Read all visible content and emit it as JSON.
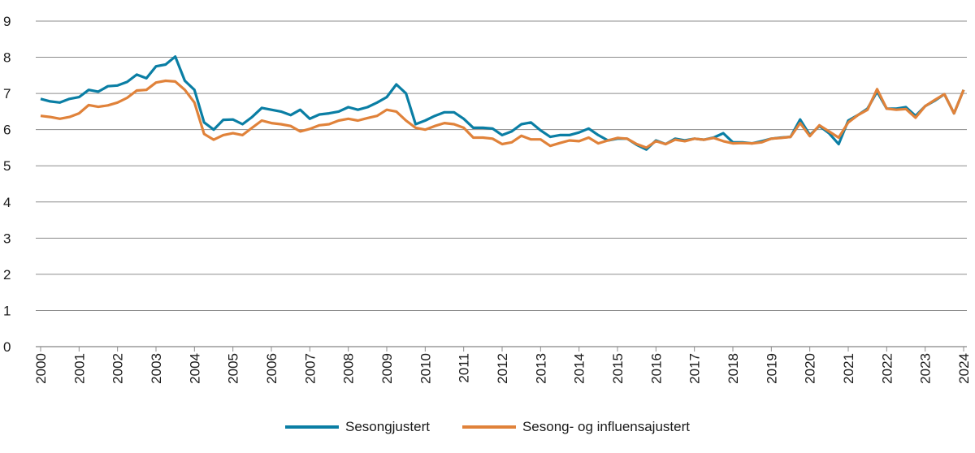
{
  "chart_data": {
    "type": "line",
    "title": "",
    "xlabel": "",
    "ylabel": "",
    "ylim": [
      0,
      9
    ],
    "yticks": [
      "0",
      "1",
      "2",
      "3",
      "4",
      "5",
      "6",
      "7",
      "8",
      "9"
    ],
    "xticks": [
      "2000",
      "2001",
      "2002",
      "2003",
      "2004",
      "2005",
      "2006",
      "2007",
      "2008",
      "2009",
      "2010",
      "2011",
      "2012",
      "2013",
      "2014",
      "2015",
      "2016",
      "2017",
      "2018",
      "2019",
      "2020",
      "2021",
      "2022",
      "2023",
      "2024"
    ],
    "x_start": "2000Q1",
    "frequency": "quarterly",
    "grid": true,
    "legend_position": "bottom",
    "series": [
      {
        "name": "Sesongjustert",
        "color": "#0a7ea4",
        "values": [
          6.85,
          6.78,
          6.75,
          6.85,
          6.9,
          7.1,
          7.05,
          7.2,
          7.22,
          7.32,
          7.52,
          7.42,
          7.75,
          7.8,
          8.02,
          7.35,
          7.1,
          6.2,
          6.0,
          6.27,
          6.28,
          6.15,
          6.35,
          6.6,
          6.55,
          6.5,
          6.4,
          6.55,
          6.3,
          6.42,
          6.45,
          6.5,
          6.62,
          6.55,
          6.62,
          6.75,
          6.9,
          7.25,
          7.0,
          6.15,
          6.25,
          6.38,
          6.48,
          6.48,
          6.3,
          6.05,
          6.05,
          6.03,
          5.85,
          5.95,
          6.15,
          6.2,
          5.98,
          5.8,
          5.85,
          5.85,
          5.92,
          6.03,
          5.85,
          5.7,
          5.75,
          5.75,
          5.58,
          5.45,
          5.7,
          5.6,
          5.75,
          5.7,
          5.75,
          5.72,
          5.78,
          5.9,
          5.65,
          5.65,
          5.62,
          5.68,
          5.75,
          5.78,
          5.8,
          6.28,
          5.85,
          6.1,
          5.9,
          5.6,
          6.25,
          6.4,
          6.58,
          7.05,
          6.58,
          6.58,
          6.62,
          6.38,
          6.65,
          6.8,
          6.98,
          6.45,
          7.1
        ]
      },
      {
        "name": "Sesong- og influensajustert",
        "color": "#e0823a",
        "values": [
          6.38,
          6.35,
          6.3,
          6.35,
          6.45,
          6.68,
          6.63,
          6.67,
          6.75,
          6.88,
          7.08,
          7.1,
          7.3,
          7.35,
          7.33,
          7.1,
          6.75,
          5.88,
          5.72,
          5.85,
          5.9,
          5.85,
          6.05,
          6.25,
          6.18,
          6.15,
          6.1,
          5.95,
          6.02,
          6.12,
          6.15,
          6.25,
          6.3,
          6.25,
          6.32,
          6.38,
          6.55,
          6.5,
          6.25,
          6.05,
          6.0,
          6.1,
          6.18,
          6.15,
          6.05,
          5.78,
          5.78,
          5.75,
          5.6,
          5.65,
          5.83,
          5.73,
          5.73,
          5.55,
          5.63,
          5.7,
          5.68,
          5.78,
          5.62,
          5.7,
          5.77,
          5.75,
          5.6,
          5.5,
          5.68,
          5.6,
          5.72,
          5.68,
          5.75,
          5.72,
          5.77,
          5.68,
          5.62,
          5.63,
          5.62,
          5.65,
          5.75,
          5.77,
          5.8,
          6.18,
          5.82,
          6.12,
          5.95,
          5.78,
          6.2,
          6.4,
          6.55,
          7.12,
          6.58,
          6.55,
          6.57,
          6.33,
          6.65,
          6.82,
          6.98,
          6.45,
          7.1
        ]
      }
    ]
  }
}
